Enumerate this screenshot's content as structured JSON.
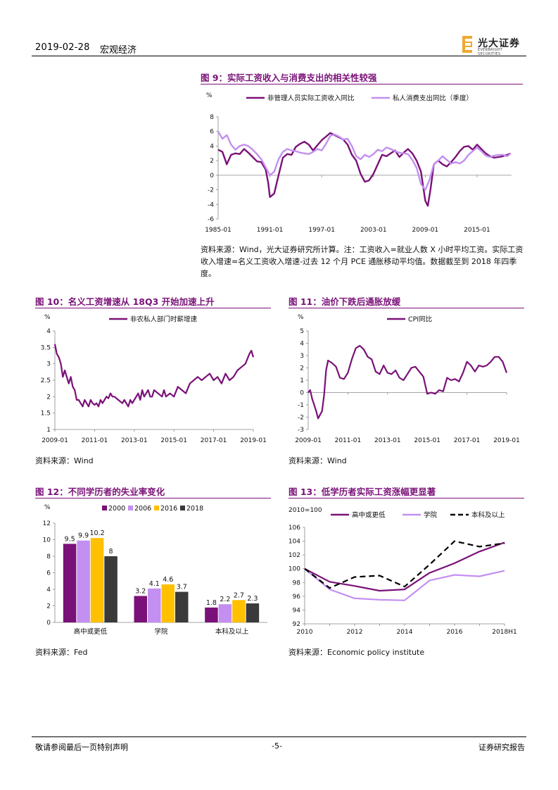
{
  "header": {
    "date": "2019-02-28",
    "category": "宏观经济",
    "logo_name": "光大证券",
    "logo_en": "EVERBRIGHT SECURITIES"
  },
  "fig9": {
    "title": "图 9：实际工资收入与消费支出的相关性较强",
    "note": "资料来源：Wind，光大证券研究所计算。注：工资收入=就业人数 X 小时平均工资。实际工资收入增速=名义工资收入增速-过去 12 个月 PCE 通胀移动平均值。数据截至到 2018 年四季度。"
  },
  "fig10": {
    "title": "图 10：名义工资增速从 18Q3 开始加速上升",
    "source": "资料来源：Wind"
  },
  "fig11": {
    "title": "图 11：油价下跌后通胀放缓",
    "source": "资料来源：Wind"
  },
  "fig12": {
    "title": "图 12：不同学历者的失业率变化",
    "source": "资料来源：Fed"
  },
  "fig13": {
    "title": "图 13：低学历者实际工资涨幅更显著",
    "source": "资料来源：Economic policy institute"
  },
  "footer": {
    "left": "敬请参阅最后一页特别声明",
    "center": "-5-",
    "right": "证券研究报告"
  },
  "colors": {
    "purple": "#7a1178",
    "lavender": "#c38ff0",
    "orange": "#ffc000",
    "dark": "#3a3a3a"
  },
  "chart_data": [
    {
      "id": "fig9",
      "type": "line",
      "ylabel": "%",
      "ylim": [
        -6,
        8
      ],
      "yticks": [
        -6,
        -4,
        -2,
        0,
        2,
        4,
        6,
        8
      ],
      "xlim": [
        1985,
        2019
      ],
      "xticks": [
        "1985-01",
        "1991-01",
        "1997-01",
        "2003-01",
        "2009-01",
        "2015-01"
      ],
      "xtick_years": [
        1985,
        1991,
        1997,
        2003,
        2009,
        2015
      ],
      "series": [
        {
          "name": "非管理人员实际工资收入同比",
          "color": "#7a1178",
          "x": [
            1985,
            1985.5,
            1986,
            1986.5,
            1987,
            1987.5,
            1988,
            1988.5,
            1989,
            1989.5,
            1990,
            1990.5,
            1990.8,
            1991,
            1991.5,
            1992,
            1992.5,
            1993,
            1993.5,
            1994,
            1994.5,
            1995,
            1995.5,
            1996,
            1996.5,
            1997,
            1997.5,
            1998,
            1998.5,
            1999,
            1999.5,
            2000,
            2000.5,
            2001,
            2001.5,
            2002,
            2002.5,
            2003,
            2003.5,
            2004,
            2004.5,
            2005,
            2005.5,
            2006,
            2006.5,
            2007,
            2007.5,
            2008,
            2008.5,
            2009,
            2009.3,
            2009.6,
            2010,
            2010.5,
            2011,
            2011.5,
            2012,
            2012.5,
            2013,
            2013.5,
            2014,
            2014.5,
            2015,
            2015.5,
            2016,
            2016.5,
            2017,
            2017.5,
            2018,
            2018.5,
            2018.9
          ],
          "values": [
            3.5,
            3.2,
            1.5,
            2.8,
            3.0,
            2.9,
            3.6,
            3.1,
            2.5,
            1.9,
            1.8,
            0.8,
            -1.0,
            -3.0,
            -2.5,
            0.0,
            2.4,
            2.9,
            2.8,
            3.9,
            4.3,
            4.6,
            4.2,
            3.4,
            4.1,
            4.8,
            5.3,
            5.8,
            5.5,
            5.2,
            4.9,
            4.2,
            2.8,
            2.0,
            0.2,
            -0.9,
            -0.7,
            0.2,
            1.5,
            2.8,
            2.6,
            3.0,
            3.4,
            2.5,
            3.1,
            3.6,
            3.0,
            2.0,
            0.5,
            -3.5,
            -4.2,
            -2.0,
            1.5,
            2.0,
            1.5,
            1.2,
            1.8,
            2.5,
            3.3,
            3.9,
            4.0,
            3.5,
            4.2,
            3.6,
            3.0,
            2.6,
            2.4,
            2.5,
            2.6,
            2.8,
            3.0
          ]
        },
        {
          "name": "私人消费支出同比（季度）",
          "color": "#c38ff0",
          "x": [
            1985,
            1985.5,
            1986,
            1986.5,
            1987,
            1987.5,
            1988,
            1988.5,
            1989,
            1989.5,
            1990,
            1990.5,
            1991,
            1991.5,
            1992,
            1992.5,
            1993,
            1993.5,
            1994,
            1994.5,
            1995,
            1995.5,
            1996,
            1996.5,
            1997,
            1997.5,
            1998,
            1998.5,
            1999,
            1999.5,
            2000,
            2000.5,
            2001,
            2001.5,
            2002,
            2002.5,
            2003,
            2003.5,
            2004,
            2004.5,
            2005,
            2005.5,
            2006,
            2006.5,
            2007,
            2007.5,
            2008,
            2008.5,
            2009,
            2009.5,
            2010,
            2010.5,
            2011,
            2011.5,
            2012,
            2012.5,
            2013,
            2013.5,
            2014,
            2014.5,
            2015,
            2015.5,
            2016,
            2016.5,
            2017,
            2017.5,
            2018,
            2018.5,
            2018.9
          ],
          "values": [
            6.0,
            5.0,
            5.5,
            4.2,
            3.5,
            4.0,
            4.2,
            4.0,
            3.5,
            2.9,
            2.2,
            1.1,
            0.0,
            0.5,
            2.2,
            3.2,
            3.6,
            3.4,
            3.3,
            3.1,
            3.0,
            2.9,
            3.2,
            3.6,
            3.4,
            4.3,
            5.4,
            5.6,
            5.3,
            4.9,
            5.0,
            4.0,
            2.6,
            2.2,
            2.8,
            2.5,
            2.9,
            3.5,
            3.3,
            3.8,
            3.6,
            3.3,
            3.1,
            3.0,
            2.9,
            2.1,
            1.0,
            -1.2,
            -2.0,
            -0.6,
            1.5,
            2.0,
            2.6,
            2.1,
            1.6,
            1.8,
            1.6,
            2.0,
            2.8,
            3.3,
            3.8,
            3.3,
            2.7,
            2.5,
            2.7,
            2.8,
            2.8,
            2.6,
            3.0
          ]
        }
      ]
    },
    {
      "id": "fig10",
      "type": "line",
      "ylabel": "%",
      "ylim": [
        1,
        4
      ],
      "yticks": [
        1,
        1.5,
        2,
        2.5,
        3,
        3.5,
        4
      ],
      "xlim": [
        2009,
        2019
      ],
      "xticks": [
        "2009-01",
        "2011-01",
        "2013-01",
        "2015-01",
        "2017-01",
        "2019-01"
      ],
      "xtick_years": [
        2009,
        2011,
        2013,
        2015,
        2017,
        2019
      ],
      "series": [
        {
          "name": "非农私人部门时薪增速",
          "color": "#7a1178",
          "x": [
            2009,
            2009.1,
            2009.2,
            2009.3,
            2009.4,
            2009.5,
            2009.6,
            2009.7,
            2009.8,
            2009.9,
            2010,
            2010.1,
            2010.2,
            2010.3,
            2010.4,
            2010.5,
            2010.6,
            2010.7,
            2010.8,
            2010.9,
            2011,
            2011.1,
            2011.2,
            2011.3,
            2011.4,
            2011.5,
            2011.6,
            2011.7,
            2011.8,
            2011.9,
            2012,
            2012.2,
            2012.4,
            2012.5,
            2012.6,
            2012.7,
            2012.8,
            2012.9,
            2013,
            2013.1,
            2013.2,
            2013.3,
            2013.4,
            2013.5,
            2013.6,
            2013.7,
            2013.8,
            2013.9,
            2014,
            2014.2,
            2014.4,
            2014.5,
            2014.6,
            2014.8,
            2015,
            2015.2,
            2015.4,
            2015.6,
            2015.8,
            2016,
            2016.2,
            2016.4,
            2016.6,
            2016.8,
            2017,
            2017.2,
            2017.4,
            2017.6,
            2017.8,
            2018,
            2018.2,
            2018.4,
            2018.6,
            2018.8,
            2018.9,
            2019
          ],
          "values": [
            3.6,
            3.3,
            3.2,
            3.0,
            2.6,
            2.8,
            2.6,
            2.4,
            2.6,
            2.3,
            2.2,
            1.9,
            1.9,
            1.8,
            1.7,
            1.9,
            1.8,
            1.7,
            1.9,
            1.8,
            1.75,
            1.8,
            1.7,
            1.9,
            1.8,
            1.9,
            2.0,
            1.95,
            2.1,
            2.0,
            2.0,
            1.9,
            1.8,
            1.9,
            1.8,
            1.7,
            1.9,
            1.8,
            1.9,
            2.0,
            2.1,
            1.9,
            2.2,
            2.0,
            2.1,
            2.2,
            2.0,
            2.0,
            2.2,
            2.1,
            2.0,
            2.2,
            2.0,
            2.1,
            2.0,
            2.3,
            2.2,
            2.1,
            2.4,
            2.5,
            2.6,
            2.5,
            2.6,
            2.7,
            2.5,
            2.6,
            2.4,
            2.7,
            2.5,
            2.6,
            2.8,
            2.9,
            3.0,
            3.3,
            3.4,
            3.2
          ]
        }
      ]
    },
    {
      "id": "fig11",
      "type": "line",
      "ylabel": "%",
      "ylim": [
        -3,
        5
      ],
      "yticks": [
        -3,
        -2,
        -1,
        0,
        1,
        2,
        3,
        4,
        5
      ],
      "xlim": [
        2009,
        2019
      ],
      "xticks": [
        "2009-01",
        "2011-01",
        "2013-01",
        "2015-01",
        "2017-01",
        "2019-01"
      ],
      "xtick_years": [
        2009,
        2011,
        2013,
        2015,
        2017,
        2019
      ],
      "series": [
        {
          "name": "CPI同比",
          "color": "#7a1178",
          "x": [
            2009,
            2009.1,
            2009.2,
            2009.3,
            2009.4,
            2009.5,
            2009.6,
            2009.7,
            2009.8,
            2009.9,
            2010,
            2010.2,
            2010.4,
            2010.6,
            2010.8,
            2011,
            2011.2,
            2011.4,
            2011.6,
            2011.8,
            2012,
            2012.2,
            2012.4,
            2012.6,
            2012.8,
            2013,
            2013.2,
            2013.4,
            2013.6,
            2013.8,
            2014,
            2014.2,
            2014.4,
            2014.6,
            2014.8,
            2015,
            2015.2,
            2015.4,
            2015.6,
            2015.8,
            2016,
            2016.2,
            2016.4,
            2016.6,
            2016.8,
            2017,
            2017.2,
            2017.4,
            2017.6,
            2017.8,
            2018,
            2018.2,
            2018.4,
            2018.6,
            2018.8,
            2019
          ],
          "values": [
            0.0,
            0.2,
            -0.5,
            -1.0,
            -1.5,
            -2.1,
            -1.8,
            -1.5,
            -0.2,
            1.8,
            2.6,
            2.4,
            2.1,
            1.2,
            1.1,
            1.6,
            2.7,
            3.6,
            3.8,
            3.5,
            2.9,
            2.7,
            1.7,
            1.5,
            2.2,
            1.6,
            1.5,
            1.8,
            1.2,
            1.0,
            1.5,
            2.0,
            2.1,
            1.7,
            1.3,
            -0.1,
            0.0,
            -0.1,
            0.2,
            0.1,
            1.2,
            1.0,
            1.1,
            0.9,
            1.6,
            2.5,
            2.2,
            1.7,
            2.2,
            2.1,
            2.2,
            2.5,
            2.9,
            2.9,
            2.5,
            1.6
          ]
        }
      ]
    },
    {
      "id": "fig12",
      "type": "bar",
      "ylabel": "%",
      "ylim": [
        0,
        12
      ],
      "yticks": [
        0,
        2,
        4,
        6,
        8,
        10,
        12
      ],
      "categories": [
        "高中或更低",
        "学院",
        "本科及以上"
      ],
      "series": [
        {
          "name": "2000",
          "color": "#7a1178",
          "values": [
            9.5,
            3.2,
            1.8
          ]
        },
        {
          "name": "2006",
          "color": "#c38ff0",
          "values": [
            9.9,
            4.1,
            2.2
          ]
        },
        {
          "name": "2016",
          "color": "#ffc000",
          "values": [
            10.2,
            4.6,
            2.7
          ]
        },
        {
          "name": "2018",
          "color": "#3a3a3a",
          "values": [
            8.0,
            3.7,
            2.3
          ]
        }
      ]
    },
    {
      "id": "fig13",
      "type": "line",
      "ylabel": "2010=100",
      "ylim": [
        92,
        106
      ],
      "yticks": [
        92,
        94,
        96,
        98,
        100,
        102,
        104,
        106
      ],
      "categories": [
        "2010",
        "2011",
        "2012",
        "2013",
        "2014",
        "2015",
        "2016",
        "2017",
        "2018H1"
      ],
      "xtick_labels": [
        "2010",
        "2012",
        "2014",
        "2016",
        "2018H1"
      ],
      "series": [
        {
          "name": "高中或更低",
          "color": "#7a1178",
          "style": "solid",
          "values": [
            100,
            98.1,
            97.5,
            96.8,
            97.0,
            99.4,
            100.8,
            102.5,
            103.8
          ]
        },
        {
          "name": "学院",
          "color": "#c38ff0",
          "style": "solid",
          "values": [
            100,
            97.0,
            95.7,
            95.5,
            95.4,
            98.3,
            99.1,
            98.9,
            99.7
          ]
        },
        {
          "name": "本科及以上",
          "color": "#000000",
          "style": "dashed",
          "values": [
            100,
            97.2,
            98.8,
            99.0,
            97.4,
            100.6,
            104.0,
            103.2,
            103.7
          ]
        }
      ]
    }
  ]
}
